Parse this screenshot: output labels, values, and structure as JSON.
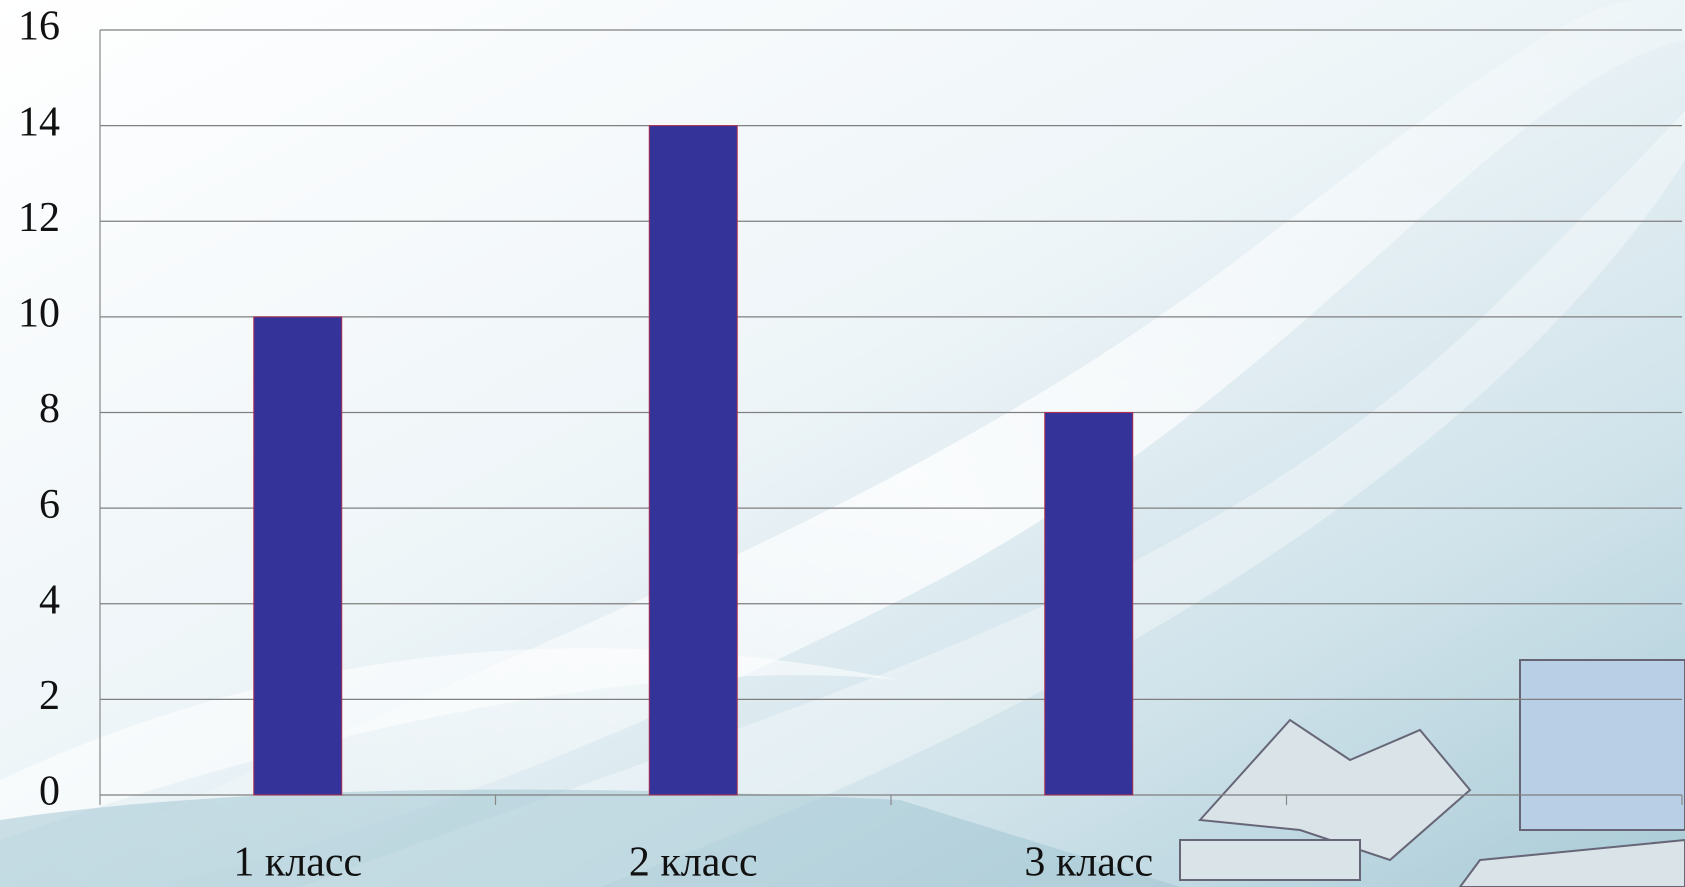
{
  "chart_data": {
    "type": "bar",
    "categories": [
      "1 класс",
      "2 класс",
      "3 класс",
      null
    ],
    "values": [
      10,
      14,
      8,
      null
    ],
    "color": "#333399",
    "ylim": [
      0,
      16
    ],
    "yticks": [
      0,
      2,
      4,
      6,
      8,
      10,
      12,
      14,
      16
    ],
    "grid": true
  }
}
